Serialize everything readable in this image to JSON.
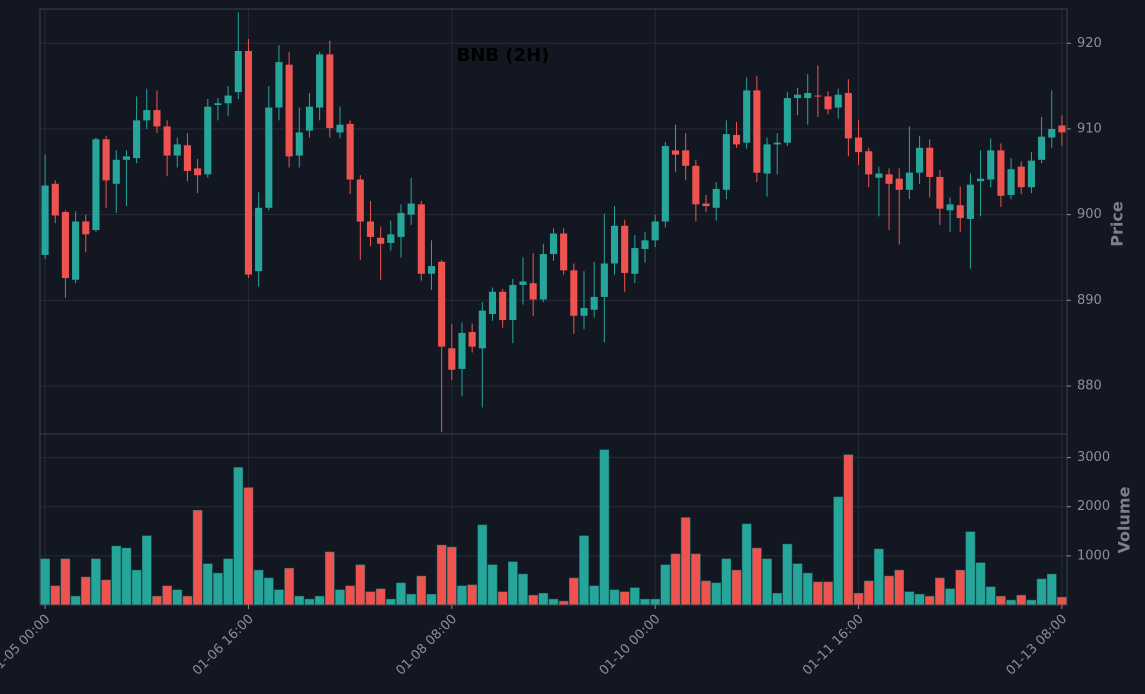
{
  "chart_data": {
    "type": "candlestick",
    "title": "BNB (2H)",
    "ylabel": "Price",
    "volume_label": "Volume",
    "up_color": "#26a69a",
    "down_color": "#ef5350",
    "grid": true,
    "x": [
      "01-05 00:00",
      "01-05 02:00",
      "01-05 04:00",
      "01-05 06:00",
      "01-05 08:00",
      "01-05 10:00",
      "01-05 12:00",
      "01-05 14:00",
      "01-05 16:00",
      "01-05 18:00",
      "01-05 20:00",
      "01-05 22:00",
      "01-06 00:00",
      "01-06 02:00",
      "01-06 04:00",
      "01-06 06:00",
      "01-06 08:00",
      "01-06 10:00",
      "01-06 12:00",
      "01-06 14:00",
      "01-06 16:00",
      "01-06 18:00",
      "01-06 20:00",
      "01-06 22:00",
      "01-07 00:00",
      "01-07 02:00",
      "01-07 04:00",
      "01-07 06:00",
      "01-07 08:00",
      "01-07 10:00",
      "01-07 12:00",
      "01-07 14:00",
      "01-07 16:00",
      "01-07 18:00",
      "01-07 20:00",
      "01-07 22:00",
      "01-08 00:00",
      "01-08 02:00",
      "01-08 04:00",
      "01-08 06:00",
      "01-08 08:00",
      "01-08 10:00",
      "01-08 12:00",
      "01-08 14:00",
      "01-08 16:00",
      "01-08 18:00",
      "01-08 20:00",
      "01-08 22:00",
      "01-09 00:00",
      "01-09 02:00",
      "01-09 04:00",
      "01-09 06:00",
      "01-09 08:00",
      "01-09 10:00",
      "01-09 12:00",
      "01-09 14:00",
      "01-09 16:00",
      "01-09 18:00",
      "01-09 20:00",
      "01-09 22:00",
      "01-10 00:00",
      "01-10 02:00",
      "01-10 04:00",
      "01-10 06:00",
      "01-10 08:00",
      "01-10 10:00",
      "01-10 12:00",
      "01-10 14:00",
      "01-10 16:00",
      "01-10 18:00",
      "01-10 20:00",
      "01-10 22:00",
      "01-11 00:00",
      "01-11 02:00",
      "01-11 04:00",
      "01-11 06:00",
      "01-11 08:00",
      "01-11 10:00",
      "01-11 12:00",
      "01-11 14:00",
      "01-11 16:00",
      "01-11 18:00",
      "01-11 20:00",
      "01-11 22:00",
      "01-12 00:00",
      "01-12 02:00",
      "01-12 04:00",
      "01-12 06:00",
      "01-12 08:00",
      "01-12 10:00",
      "01-12 12:00",
      "01-12 14:00",
      "01-12 16:00",
      "01-12 18:00",
      "01-12 20:00",
      "01-12 22:00",
      "01-13 00:00",
      "01-13 02:00",
      "01-13 04:00",
      "01-13 06:00",
      "01-13 08:00"
    ],
    "open": [
      895.3,
      903.6,
      900.3,
      892.4,
      899.2,
      898.2,
      908.8,
      903.6,
      906.4,
      906.6,
      911,
      912.2,
      910.3,
      906.9,
      908.1,
      905.4,
      904.7,
      912.8,
      913,
      914.3,
      919.1,
      893.4,
      900.8,
      912.5,
      917.5,
      906.9,
      909.8,
      912.5,
      918.7,
      909.6,
      910.6,
      904.1,
      899.2,
      897.3,
      896.7,
      897.4,
      900,
      901.2,
      893.1,
      894.5,
      884.4,
      882,
      886.3,
      884.4,
      888.4,
      891,
      887.7,
      891.8,
      892,
      890.1,
      895.4,
      897.8,
      893.5,
      888.2,
      888.9,
      890.4,
      894.3,
      898.7,
      893.1,
      896,
      897,
      899.2,
      907.5,
      907.5,
      905.7,
      901.3,
      900.8,
      902.9,
      909.3,
      908.4,
      914.5,
      904.8,
      908.2,
      908.4,
      913.6,
      913.6,
      913.9,
      913.8,
      912.5,
      914.2,
      909,
      907.4,
      904.3,
      904.7,
      904.2,
      902.9,
      904.9,
      907.8,
      904.4,
      900.5,
      901.1,
      899.5,
      903.9,
      904.1,
      907.5,
      902.3,
      905.6,
      903.2,
      906.4,
      909,
      910.4
    ],
    "high": [
      907,
      904,
      900.5,
      900.4,
      900,
      909,
      909.2,
      907.5,
      907.5,
      913.8,
      914.7,
      914.5,
      911,
      909,
      909.5,
      906.5,
      913.5,
      913.6,
      915,
      923.6,
      920.5,
      902.6,
      915,
      919.8,
      919,
      912.5,
      914.2,
      919,
      920.3,
      912.6,
      911,
      904.6,
      901.6,
      898.6,
      899.3,
      901.2,
      904.3,
      901.6,
      897,
      894.7,
      887.2,
      887.4,
      887.3,
      889.8,
      891.5,
      891.3,
      892.5,
      895,
      895.5,
      896.6,
      898.4,
      898.4,
      894.3,
      893.4,
      894.5,
      900.1,
      901,
      899.4,
      897.6,
      898,
      900,
      908.5,
      910.5,
      909.5,
      906.4,
      902.3,
      903.8,
      911,
      910.8,
      916,
      916.2,
      909,
      909.5,
      914.3,
      914.8,
      916.4,
      917.4,
      914.4,
      914.7,
      915.8,
      911,
      907.8,
      905.6,
      905.4,
      905.4,
      910.3,
      909.2,
      908.8,
      905.2,
      902,
      903.3,
      904.8,
      907.5,
      908.9,
      908.3,
      906.6,
      906.2,
      907.3,
      911.4,
      914.5,
      911.6
    ],
    "low": [
      894.8,
      899,
      890.3,
      892,
      895.6,
      898,
      900.8,
      900.2,
      901,
      906,
      910,
      909.5,
      904.5,
      905.5,
      903.9,
      902.5,
      904.3,
      911,
      911.5,
      913.5,
      892.6,
      891.6,
      900.5,
      911,
      905.5,
      905.5,
      909,
      911,
      909,
      908.9,
      902.4,
      894.7,
      896.3,
      892.4,
      895.8,
      895,
      898.8,
      892.3,
      891.2,
      874.6,
      880.7,
      878.8,
      883.9,
      877.5,
      887.6,
      886.8,
      885,
      889.5,
      888.2,
      889.8,
      894.6,
      893,
      886.1,
      886.6,
      888,
      885.1,
      893,
      891,
      892,
      894.4,
      896.2,
      898.5,
      905,
      904,
      899.2,
      900.3,
      899.3,
      901.8,
      907.8,
      907.7,
      903.8,
      902.1,
      904.7,
      908,
      911.6,
      910.5,
      911.4,
      911.7,
      911.2,
      906.8,
      905.8,
      903.2,
      899.8,
      898.2,
      896.5,
      901.8,
      903.6,
      902,
      898.8,
      898,
      898,
      893.7,
      899.8,
      903.2,
      900.9,
      901.8,
      902.4,
      902.5,
      906,
      907.8,
      908
    ],
    "close": [
      903.4,
      899.9,
      892.6,
      899.2,
      897.7,
      908.8,
      904,
      906.4,
      906.8,
      911,
      912.2,
      910.3,
      906.9,
      908.2,
      905.1,
      904.6,
      912.6,
      913,
      913.9,
      919.1,
      893,
      900.8,
      912.5,
      917.8,
      906.8,
      909.6,
      912.6,
      918.7,
      910.1,
      910.5,
      904.1,
      899.2,
      897.4,
      896.6,
      897.7,
      900.2,
      901.3,
      893.1,
      894,
      884.6,
      881.9,
      886.2,
      884.6,
      888.8,
      891,
      887.7,
      891.8,
      892.2,
      890.1,
      895.4,
      897.8,
      893.5,
      888.2,
      889.1,
      890.4,
      894.3,
      898.7,
      893.2,
      896.1,
      897,
      899.2,
      908,
      907,
      905.7,
      901.2,
      901,
      903,
      909.4,
      908.2,
      914.5,
      904.9,
      908.2,
      908.4,
      913.6,
      914,
      914.2,
      913.8,
      912.3,
      914,
      908.9,
      907.3,
      904.7,
      904.8,
      903.6,
      902.9,
      904.9,
      907.8,
      904.4,
      900.7,
      901.2,
      899.6,
      903.5,
      904.2,
      907.5,
      902.2,
      905.3,
      903.2,
      906.3,
      909.1,
      910,
      909.6
    ],
    "volume": [
      940,
      390,
      940,
      180,
      570,
      940,
      510,
      1200,
      1160,
      710,
      1410,
      180,
      390,
      310,
      180,
      1930,
      840,
      650,
      940,
      2800,
      2390,
      710,
      550,
      310,
      750,
      180,
      120,
      180,
      1080,
      310,
      390,
      820,
      270,
      330,
      120,
      450,
      220,
      590,
      220,
      1220,
      1180,
      390,
      410,
      1630,
      820,
      270,
      880,
      630,
      200,
      240,
      120,
      80,
      550,
      1410,
      390,
      3160,
      310,
      270,
      350,
      120,
      120,
      820,
      1040,
      1780,
      1040,
      490,
      450,
      940,
      710,
      1650,
      1160,
      940,
      240,
      1240,
      840,
      650,
      470,
      470,
      2200,
      3060,
      240,
      490,
      1140,
      590,
      710,
      270,
      220,
      180,
      550,
      330,
      710,
      1490,
      860,
      370,
      180,
      100,
      200,
      100,
      530,
      630,
      160
    ],
    "ylim": [
      874.4,
      924
    ],
    "yticks": [
      880,
      890,
      900,
      910,
      920
    ],
    "volume_ylim": [
      0,
      3480
    ],
    "volume_yticks": [
      1000,
      2000,
      3000
    ],
    "xticks": [
      "01-05 00:00",
      "01-06 16:00",
      "01-08 08:00",
      "01-10 00:00",
      "01-11 16:00",
      "01-13 08:00"
    ]
  }
}
